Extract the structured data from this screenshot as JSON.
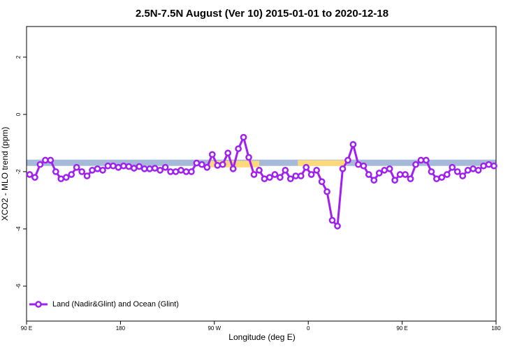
{
  "chart_data": {
    "type": "line",
    "title": "2.5N-7.5N August (Ver 10)   2015-01-01 to 2020-12-18",
    "x_label": "Longitude (deg E)",
    "y_label": "XCO2 - MLO trend (ppm)",
    "xlim": [
      90,
      540
    ],
    "ylim": [
      -7.22,
      3.07
    ],
    "xticks": [
      {
        "value": 90,
        "label": "90 E"
      },
      180,
      {
        "value": 270,
        "label": "90 W"
      },
      {
        "value": 360,
        "label": "0"
      },
      {
        "value": 450,
        "label": "90 E"
      },
      {
        "value": 540,
        "label": "180"
      }
    ],
    "yticks": [
      2,
      0,
      -2,
      -4,
      -6
    ],
    "legend": "bottom-left",
    "bands": [
      {
        "color": "#a5bad8",
        "x": [
          90,
          540
        ],
        "y": [
          -1.58,
          -1.8
        ]
      },
      {
        "color": "#fdd97a",
        "x": [
          266,
          313
        ],
        "y": [
          -1.62,
          -1.85
        ]
      },
      {
        "color": "#fdd97a",
        "x": [
          350,
          397
        ],
        "y": [
          -1.6,
          -1.8
        ]
      }
    ],
    "x": [
      93,
      98,
      103,
      108,
      113,
      118,
      123,
      128,
      133,
      138,
      143,
      148,
      153,
      158,
      163,
      168,
      173,
      178,
      183,
      188,
      193,
      198,
      203,
      208,
      213,
      218,
      223,
      228,
      233,
      238,
      243,
      248,
      253,
      258,
      263,
      268,
      273,
      278,
      283,
      288,
      293,
      298,
      303,
      308,
      313,
      318,
      323,
      328,
      333,
      338,
      343,
      348,
      353,
      358,
      363,
      368,
      373,
      378,
      383,
      388,
      393,
      398,
      403,
      408,
      413,
      418,
      423,
      428,
      433,
      438,
      443,
      448,
      453,
      458,
      463,
      468,
      473,
      478,
      483,
      488,
      493,
      498,
      503,
      508,
      513,
      518,
      523,
      528,
      533,
      538
    ],
    "series": [
      {
        "name": "Land (Nadir&Glint) and Ocean (Glint)",
        "color": "#a020f0",
        "values": [
          -2.1,
          -2.2,
          -1.75,
          -1.6,
          -1.6,
          -2.0,
          -2.25,
          -2.2,
          -2.1,
          -1.85,
          -2.0,
          -2.15,
          -1.95,
          -1.9,
          -1.95,
          -1.8,
          -1.8,
          -1.85,
          -1.8,
          -1.82,
          -1.88,
          -1.82,
          -1.9,
          -1.9,
          -1.88,
          -1.95,
          -1.85,
          -2.0,
          -2.0,
          -1.95,
          -2.0,
          -2.0,
          -1.7,
          -1.75,
          -1.85,
          -1.4,
          -1.78,
          -1.75,
          -1.35,
          -1.9,
          -1.2,
          -0.8,
          -1.5,
          -2.1,
          -1.95,
          -2.25,
          -2.2,
          -2.1,
          -2.2,
          -1.95,
          -2.25,
          -2.15,
          -2.15,
          -1.85,
          -2.1,
          -1.95,
          -2.35,
          -2.7,
          -3.7,
          -3.9,
          -1.9,
          -1.6,
          -1.05,
          -1.75,
          -1.8,
          -2.1,
          -2.3,
          -2.05,
          -1.95,
          -1.9,
          -2.3,
          -2.1,
          -2.1,
          -2.25,
          -1.75,
          -1.6,
          -1.6,
          -2.0,
          -2.25,
          -2.2,
          -2.1,
          -1.85,
          -2.0,
          -2.15,
          -1.95,
          -1.9,
          -1.95,
          -1.8,
          -1.75,
          -1.8
        ]
      }
    ]
  }
}
